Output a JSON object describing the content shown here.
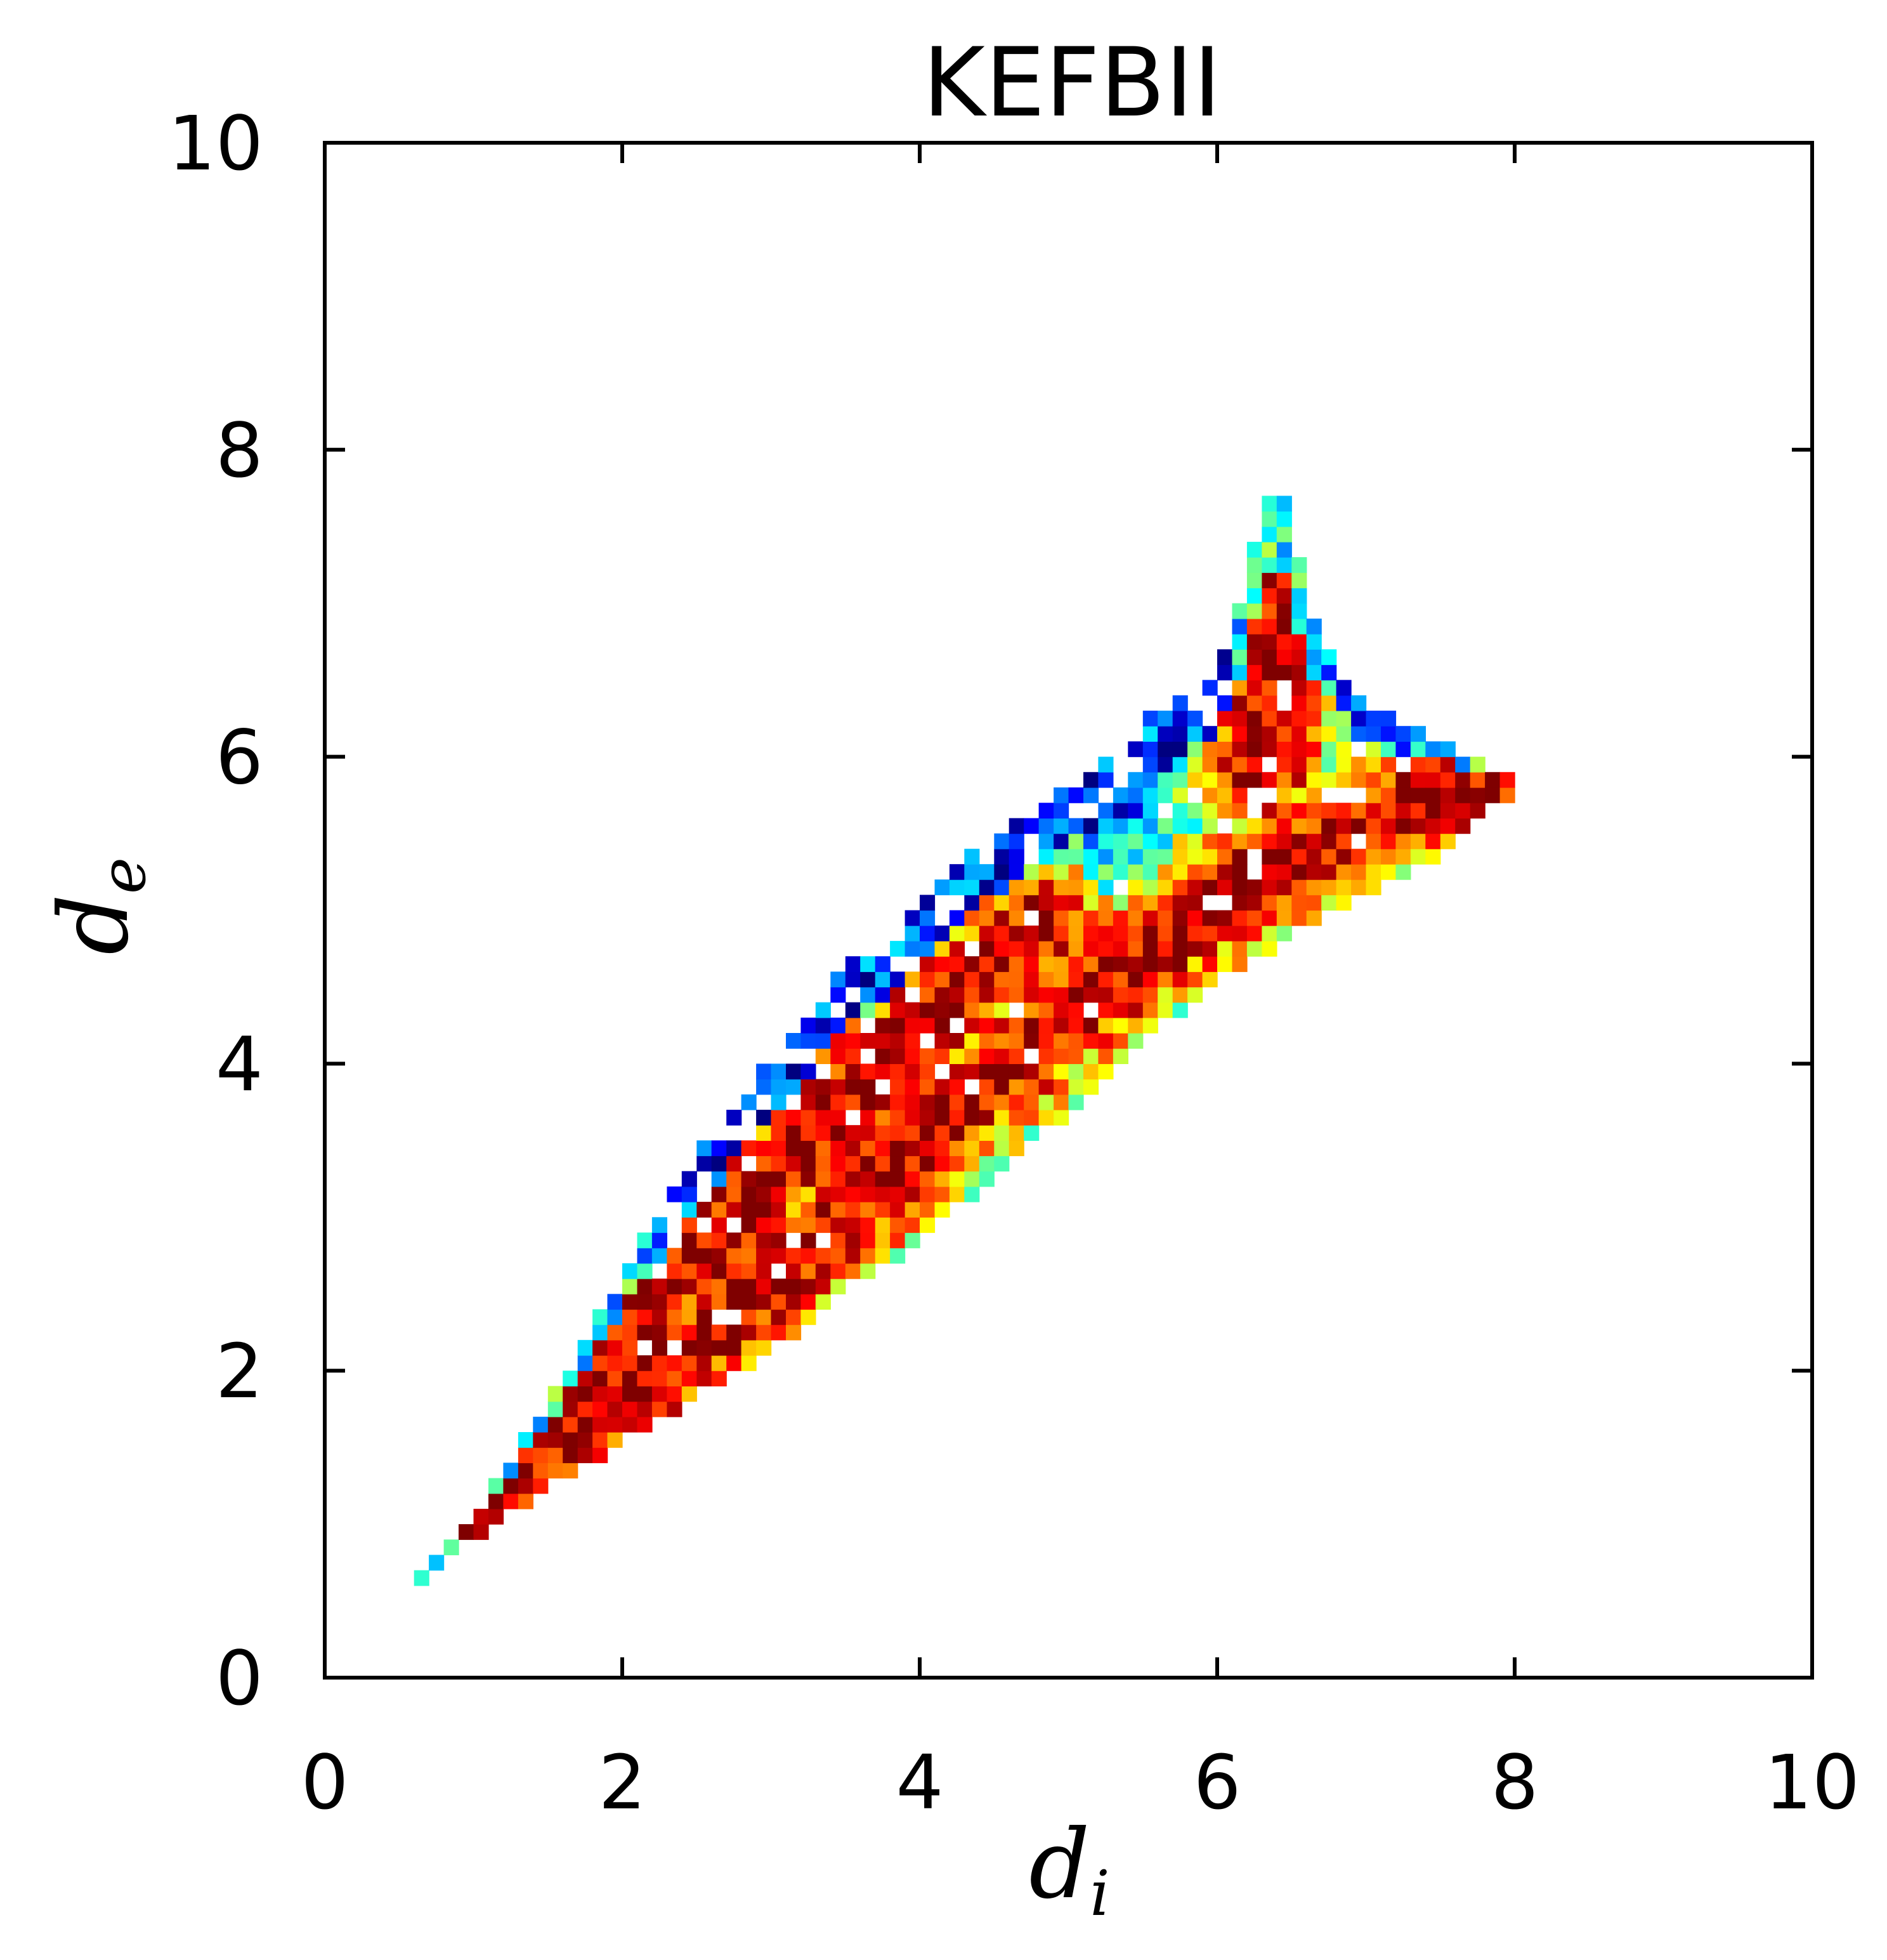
{
  "chart_data": {
    "type": "heatmap",
    "title": "KEFBII",
    "xlabel": {
      "base": "d",
      "sub": "i"
    },
    "ylabel": {
      "base": "d",
      "sub": "e"
    },
    "xlim": [
      0,
      10
    ],
    "ylim": [
      0,
      10
    ],
    "xticks": [
      "0",
      "2",
      "4",
      "6",
      "8",
      "10"
    ],
    "yticks": [
      "0",
      "2",
      "4",
      "6",
      "8",
      "10"
    ],
    "xtick_values": [
      0,
      2,
      4,
      6,
      8,
      10
    ],
    "ytick_values": [
      0,
      2,
      4,
      6,
      8,
      10
    ],
    "grid": false,
    "legend": "none",
    "colormap": "jet",
    "bin_size": 0.1,
    "colormap_stops": [
      "#00007f",
      "#0000ff",
      "#007fff",
      "#00ffff",
      "#7fff7f",
      "#ffff00",
      "#ff7f00",
      "#ff0000",
      "#7f0000"
    ],
    "density_ridges": [
      {
        "name": "lower-diagonal-band",
        "points": [
          [
            0.7,
            0.7
          ],
          [
            1.0,
            1.0
          ],
          [
            1.3,
            1.25
          ],
          [
            1.6,
            1.55
          ],
          [
            2.0,
            1.8
          ],
          [
            2.4,
            2.1
          ],
          [
            2.9,
            2.45
          ],
          [
            3.3,
            2.85
          ],
          [
            3.7,
            3.2
          ],
          [
            4.1,
            3.55
          ],
          [
            4.5,
            3.9
          ],
          [
            4.9,
            4.25
          ],
          [
            5.3,
            4.55
          ],
          [
            5.7,
            4.85
          ],
          [
            6.1,
            5.1
          ],
          [
            6.5,
            5.35
          ],
          [
            7.0,
            5.55
          ],
          [
            7.5,
            5.75
          ],
          [
            7.9,
            5.85
          ]
        ]
      },
      {
        "name": "upper-diagonal-ridge",
        "points": [
          [
            1.2,
            1.3
          ],
          [
            1.6,
            1.75
          ],
          [
            2.0,
            2.2
          ],
          [
            2.4,
            2.65
          ],
          [
            2.8,
            3.05
          ],
          [
            3.2,
            3.45
          ],
          [
            3.6,
            3.85
          ],
          [
            4.0,
            4.25
          ],
          [
            4.4,
            4.6
          ],
          [
            4.8,
            4.9
          ]
        ]
      },
      {
        "name": "spike",
        "points": [
          [
            6.3,
            5.9
          ],
          [
            6.35,
            6.3
          ],
          [
            6.4,
            6.7
          ],
          [
            6.45,
            7.1
          ],
          [
            6.4,
            7.5
          ]
        ]
      }
    ],
    "support_region": {
      "upper_edge": [
        [
          0.65,
          0.65
        ],
        [
          1.0,
          1.05
        ],
        [
          1.5,
          1.75
        ],
        [
          2.0,
          2.6
        ],
        [
          2.5,
          3.4
        ],
        [
          3.0,
          4.0
        ],
        [
          3.5,
          4.6
        ],
        [
          4.0,
          5.0
        ],
        [
          4.5,
          5.5
        ],
        [
          5.0,
          5.8
        ],
        [
          5.5,
          6.2
        ],
        [
          6.0,
          6.5
        ],
        [
          6.2,
          7.1
        ],
        [
          6.3,
          7.7
        ],
        [
          6.45,
          7.7
        ],
        [
          6.6,
          7.0
        ],
        [
          6.8,
          6.6
        ],
        [
          7.0,
          6.3
        ],
        [
          7.5,
          6.1
        ],
        [
          7.9,
          5.9
        ]
      ],
      "lower_edge": [
        [
          0.65,
          0.65
        ],
        [
          1.0,
          0.9
        ],
        [
          1.5,
          1.25
        ],
        [
          2.0,
          1.55
        ],
        [
          2.5,
          1.85
        ],
        [
          3.0,
          2.15
        ],
        [
          3.5,
          2.55
        ],
        [
          4.0,
          2.85
        ],
        [
          4.5,
          3.3
        ],
        [
          5.0,
          3.7
        ],
        [
          5.5,
          4.15
        ],
        [
          6.0,
          4.55
        ],
        [
          6.5,
          4.85
        ],
        [
          7.0,
          5.1
        ],
        [
          7.5,
          5.4
        ],
        [
          7.9,
          5.75
        ]
      ]
    },
    "top_boundary_band": {
      "min_x": 2.2,
      "max_x": 6.1,
      "width": 0.35
    }
  }
}
